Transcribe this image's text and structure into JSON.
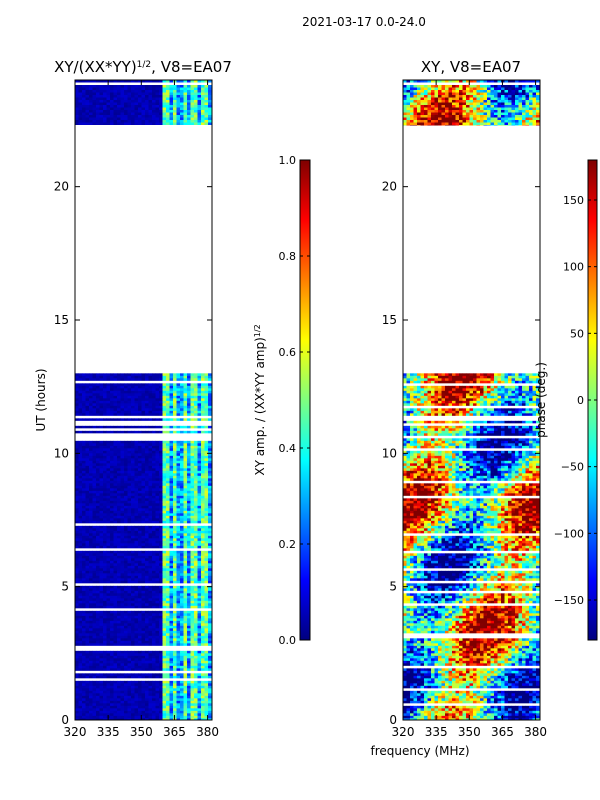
{
  "chart_data": {
    "suptitle": "2021-03-17 0.0-24.0",
    "shared_xlabel": "frequency (MHz)",
    "panels": [
      {
        "type": "heatmap",
        "name": "amplitude",
        "title": "XY/(XX*YY)^{1/2}, V8=EA07",
        "title_main": "XY/(XX*YY)",
        "title_sup": "1/2",
        "title_tail": ", V8=EA07",
        "ylabel": "UT (hours)",
        "xlim": [
          320,
          382
        ],
        "ylim": [
          0,
          24
        ],
        "xticks": [
          320,
          335,
          350,
          365,
          380
        ],
        "yticks": [
          0,
          5,
          10,
          15,
          20
        ],
        "data_bands_hours": [
          [
            0,
            13
          ],
          [
            22.3,
            24
          ]
        ],
        "colorbar": {
          "label_main": "XY amp. / (XX*YY amp)",
          "label_sup": "1/2",
          "range": [
            0.0,
            1.0
          ],
          "ticks": [
            0.0,
            0.2,
            0.4,
            0.6,
            0.8,
            1.0
          ],
          "tick_labels": [
            "0.0",
            "0.2",
            "0.4",
            "0.6",
            "0.8",
            "1.0"
          ]
        }
      },
      {
        "type": "heatmap",
        "name": "phase",
        "title": "XY, V8=EA07",
        "ylabel": "",
        "xlim": [
          320,
          382
        ],
        "ylim": [
          0,
          24
        ],
        "xticks": [
          320,
          335,
          350,
          365,
          380
        ],
        "yticks": [
          0,
          5,
          10,
          15,
          20
        ],
        "data_bands_hours": [
          [
            0,
            13
          ],
          [
            22.3,
            24
          ]
        ],
        "colorbar": {
          "label": "phase (deg.)",
          "range": [
            -180,
            180
          ],
          "ticks": [
            -150,
            -100,
            -50,
            0,
            50,
            100,
            150
          ],
          "tick_labels": [
            "−150",
            "−100",
            "−50",
            "0",
            "50",
            "100",
            "150"
          ]
        }
      }
    ]
  },
  "colors": {
    "jet": [
      "#00007f",
      "#0000ff",
      "#007fff",
      "#00ffff",
      "#7fff7f",
      "#ffff00",
      "#ff7f00",
      "#ff0000",
      "#7f0000"
    ]
  }
}
